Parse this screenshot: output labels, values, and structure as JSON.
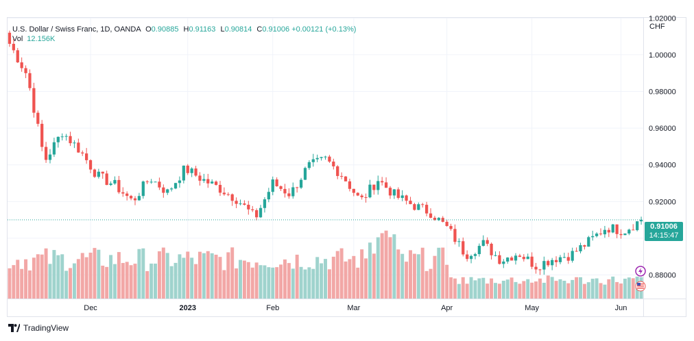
{
  "legend": {
    "title": "U.S. Dollar / Swiss Franc, 1D, OANDA",
    "o_label": "O",
    "o_value": "0.90885",
    "h_label": "H",
    "h_value": "0.91163",
    "l_label": "L",
    "l_value": "0.90814",
    "c_label": "C",
    "c_value": "0.91006",
    "change": "+0.00121 (+0.13%)",
    "vol_label": "Vol",
    "vol_value": "12.156K"
  },
  "currency": "CHF",
  "price_tag": {
    "price": "0.91006",
    "countdown": "14:15:47"
  },
  "footer": {
    "brand": "TradingView"
  },
  "colors": {
    "up": "#26a69a",
    "down": "#ef5350",
    "up_vol": "#9fd3cd",
    "down_vol": "#f2a7a6",
    "grid": "#f0f3fa",
    "last_line": "#26a69a"
  },
  "icons": [
    "tradingview-logo-icon",
    "lightning-event-icon",
    "us-flag-event-icon"
  ],
  "chart_data": {
    "type": "candlestick",
    "title": "U.S. Dollar / Swiss Franc, 1D, OANDA",
    "y_ticks": [
      "1.02000",
      "1.00000",
      "0.98000",
      "0.96000",
      "0.94000",
      "0.92000",
      "0.90000",
      "0.88000"
    ],
    "y_tick_values": [
      1.02,
      1.0,
      0.98,
      0.96,
      0.94,
      0.92,
      0.9,
      0.88
    ],
    "ylim": [
      0.8675,
      1.0205
    ],
    "x_ticks": [
      {
        "label": "Dec",
        "index": 20,
        "bold": false
      },
      {
        "label": "2023",
        "index": 44,
        "bold": true
      },
      {
        "label": "Feb",
        "index": 65,
        "bold": false
      },
      {
        "label": "Mar",
        "index": 85,
        "bold": false
      },
      {
        "label": "Apr",
        "index": 108,
        "bold": false
      },
      {
        "label": "May",
        "index": 129,
        "bold": false
      },
      {
        "label": "Jun",
        "index": 151,
        "bold": false
      }
    ],
    "last_price": 0.91006,
    "grid": true,
    "key_closes": [
      1.006,
      0.989,
      0.942,
      0.958,
      0.948,
      0.934,
      0.929,
      0.92,
      0.933,
      0.925,
      0.938,
      0.932,
      0.927,
      0.921,
      0.911,
      0.93,
      0.924,
      0.939,
      0.943,
      0.934,
      0.92,
      0.932,
      0.923,
      0.918,
      0.914,
      0.905,
      0.891,
      0.897,
      0.888,
      0.892,
      0.885,
      0.889,
      0.891,
      0.898,
      0.906,
      0.904,
      0.91
    ],
    "volume_note": "Volume histogram, no scale shown"
  }
}
